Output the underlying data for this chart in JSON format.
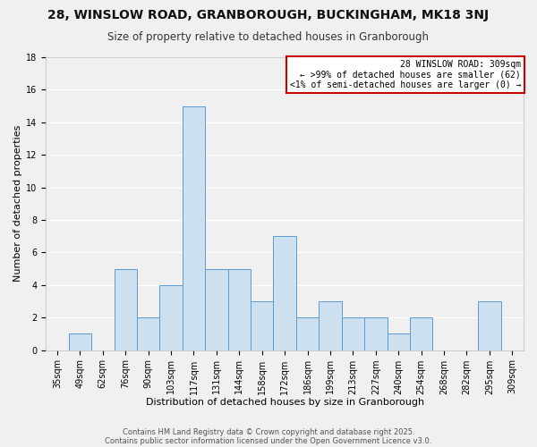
{
  "title": "28, WINSLOW ROAD, GRANBOROUGH, BUCKINGHAM, MK18 3NJ",
  "subtitle": "Size of property relative to detached houses in Granborough",
  "xlabel": "Distribution of detached houses by size in Granborough",
  "ylabel": "Number of detached properties",
  "bar_color": "#cce0f0",
  "bar_edge_color": "#5b9bd5",
  "bin_labels": [
    "35sqm",
    "49sqm",
    "62sqm",
    "76sqm",
    "90sqm",
    "103sqm",
    "117sqm",
    "131sqm",
    "144sqm",
    "158sqm",
    "172sqm",
    "186sqm",
    "199sqm",
    "213sqm",
    "227sqm",
    "240sqm",
    "254sqm",
    "268sqm",
    "282sqm",
    "295sqm",
    "309sqm"
  ],
  "counts": [
    0,
    1,
    0,
    5,
    2,
    4,
    15,
    5,
    5,
    3,
    7,
    2,
    3,
    2,
    2,
    1,
    2,
    0,
    0,
    3,
    0
  ],
  "ylim": [
    0,
    18
  ],
  "yticks": [
    0,
    2,
    4,
    6,
    8,
    10,
    12,
    14,
    16,
    18
  ],
  "annotation_box_color": "#ffffff",
  "annotation_border_color": "#cc0000",
  "annotation_title": "28 WINSLOW ROAD: 309sqm",
  "annotation_line1": "← >99% of detached houses are smaller (62)",
  "annotation_line2": "<1% of semi-detached houses are larger (0) →",
  "footer1": "Contains HM Land Registry data © Crown copyright and database right 2025.",
  "footer2": "Contains public sector information licensed under the Open Government Licence v3.0.",
  "background_color": "#f0f0f0",
  "plot_bg_color": "#f0f0f0",
  "grid_color": "#ffffff",
  "title_fontsize": 10,
  "subtitle_fontsize": 8.5,
  "axis_label_fontsize": 8,
  "tick_fontsize": 7,
  "annotation_fontsize": 7
}
